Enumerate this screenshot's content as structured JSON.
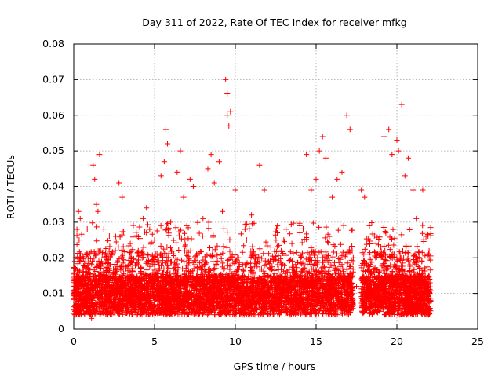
{
  "chart_data": {
    "type": "scatter",
    "title": "Day 311 of 2022, Rate Of TEC Index for receiver mfkg",
    "xlabel": "GPS time / hours",
    "ylabel": "ROTI / TECUs",
    "xlim": [
      0,
      25
    ],
    "ylim": [
      0,
      0.08
    ],
    "xticks": [
      0,
      5,
      10,
      15,
      20,
      25
    ],
    "xtick_labels": [
      "0",
      "5",
      "10",
      "15",
      "20",
      "25"
    ],
    "yticks": [
      0,
      0.01,
      0.02,
      0.03,
      0.04,
      0.05,
      0.06,
      0.07,
      0.08
    ],
    "ytick_labels": [
      "0",
      "0.01",
      "0.02",
      "0.03",
      "0.04",
      "0.05",
      "0.06",
      "0.07",
      "0.08"
    ],
    "grid": true,
    "marker": "plus",
    "color": "#ff0000",
    "series": [
      {
        "points": [
          [
            0.1,
            0.009
          ],
          [
            0.2,
            0.028
          ],
          [
            0.3,
            0.033
          ],
          [
            0.4,
            0.031
          ],
          [
            0.5,
            0.012
          ],
          [
            0.6,
            0.016
          ],
          [
            0.8,
            0.006
          ],
          [
            1.0,
            0.008
          ],
          [
            1.1,
            0.003
          ],
          [
            1.2,
            0.046
          ],
          [
            1.3,
            0.042
          ],
          [
            1.4,
            0.035
          ],
          [
            1.5,
            0.033
          ],
          [
            1.6,
            0.049
          ],
          [
            1.7,
            0.01
          ],
          [
            2.0,
            0.012
          ],
          [
            2.3,
            0.018
          ],
          [
            2.6,
            0.026
          ],
          [
            2.8,
            0.041
          ],
          [
            3.0,
            0.037
          ],
          [
            3.2,
            0.015
          ],
          [
            3.5,
            0.024
          ],
          [
            3.8,
            0.01
          ],
          [
            4.0,
            0.018
          ],
          [
            4.3,
            0.031
          ],
          [
            4.5,
            0.034
          ],
          [
            4.7,
            0.028
          ],
          [
            5.0,
            0.025
          ],
          [
            5.2,
            0.02
          ],
          [
            5.4,
            0.043
          ],
          [
            5.6,
            0.047
          ],
          [
            5.7,
            0.056
          ],
          [
            5.8,
            0.052
          ],
          [
            6.0,
            0.03
          ],
          [
            6.2,
            0.017
          ],
          [
            6.4,
            0.044
          ],
          [
            6.6,
            0.05
          ],
          [
            6.8,
            0.037
          ],
          [
            7.0,
            0.029
          ],
          [
            7.2,
            0.042
          ],
          [
            7.4,
            0.04
          ],
          [
            7.6,
            0.021
          ],
          [
            8.0,
            0.031
          ],
          [
            8.3,
            0.045
          ],
          [
            8.5,
            0.049
          ],
          [
            8.7,
            0.041
          ],
          [
            9.0,
            0.047
          ],
          [
            9.2,
            0.033
          ],
          [
            9.4,
            0.07
          ],
          [
            9.5,
            0.066
          ],
          [
            9.5,
            0.06
          ],
          [
            9.6,
            0.057
          ],
          [
            9.7,
            0.061
          ],
          [
            10.0,
            0.039
          ],
          [
            10.2,
            0.02
          ],
          [
            10.6,
            0.028
          ],
          [
            11.0,
            0.032
          ],
          [
            11.5,
            0.046
          ],
          [
            11.8,
            0.039
          ],
          [
            12.2,
            0.023
          ],
          [
            12.6,
            0.027
          ],
          [
            13.0,
            0.025
          ],
          [
            13.5,
            0.024
          ],
          [
            14.0,
            0.029
          ],
          [
            14.4,
            0.049
          ],
          [
            14.7,
            0.039
          ],
          [
            15.0,
            0.042
          ],
          [
            15.2,
            0.05
          ],
          [
            15.4,
            0.054
          ],
          [
            15.6,
            0.048
          ],
          [
            16.0,
            0.037
          ],
          [
            16.3,
            0.042
          ],
          [
            16.6,
            0.044
          ],
          [
            16.9,
            0.06
          ],
          [
            17.1,
            0.056
          ],
          [
            17.3,
            0.02
          ],
          [
            17.5,
            0.012
          ],
          [
            17.8,
            0.039
          ],
          [
            18.0,
            0.037
          ],
          [
            18.3,
            0.029
          ],
          [
            18.6,
            0.017
          ],
          [
            19.0,
            0.023
          ],
          [
            19.2,
            0.054
          ],
          [
            19.5,
            0.056
          ],
          [
            19.7,
            0.049
          ],
          [
            20.0,
            0.053
          ],
          [
            20.1,
            0.05
          ],
          [
            20.3,
            0.063
          ],
          [
            20.5,
            0.043
          ],
          [
            20.7,
            0.048
          ],
          [
            21.0,
            0.039
          ],
          [
            21.2,
            0.031
          ],
          [
            21.6,
            0.039
          ],
          [
            21.8,
            0.026
          ],
          [
            22.0,
            0.008
          ],
          [
            2.2,
            0.007
          ],
          [
            4.1,
            0.006
          ],
          [
            6.1,
            0.005
          ],
          [
            8.1,
            0.006
          ],
          [
            11.2,
            0.007
          ],
          [
            13.1,
            0.006
          ],
          [
            15.8,
            0.008
          ],
          [
            18.1,
            0.006
          ],
          [
            19.8,
            0.005
          ],
          [
            21.4,
            0.006
          ]
        ]
      }
    ]
  }
}
